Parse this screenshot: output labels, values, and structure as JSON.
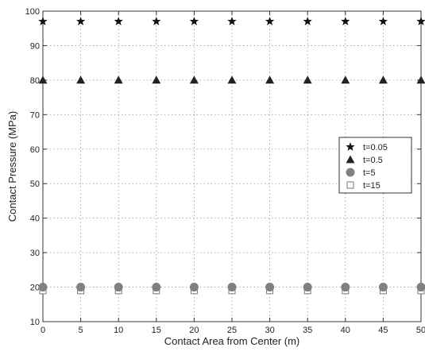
{
  "chart_data": {
    "type": "scatter",
    "title": "",
    "xlabel": "Contact Area from Center (m)",
    "ylabel": "Contact Pressure (MPa)",
    "xlim": [
      0,
      50
    ],
    "ylim": [
      10,
      100
    ],
    "xticks": [
      0,
      5,
      10,
      15,
      20,
      25,
      30,
      35,
      40,
      45,
      50
    ],
    "yticks": [
      10,
      20,
      30,
      40,
      50,
      60,
      70,
      80,
      90,
      100
    ],
    "grid": true,
    "legend_position": "right",
    "x": [
      0,
      5,
      10,
      15,
      20,
      25,
      30,
      35,
      40,
      45,
      50
    ],
    "series": [
      {
        "name": "t=0.05",
        "marker": "star",
        "color": "#111111",
        "values": [
          97,
          97,
          97,
          97,
          97,
          97,
          97,
          97,
          97,
          97,
          97
        ]
      },
      {
        "name": "t=0.5",
        "marker": "triangle",
        "color": "#222222",
        "values": [
          80,
          80,
          80,
          80,
          80,
          80,
          80,
          80,
          80,
          80,
          80
        ]
      },
      {
        "name": "t=5",
        "marker": "circle",
        "color": "#808080",
        "values": [
          20,
          20,
          20,
          20,
          20,
          20,
          20,
          20,
          20,
          20,
          20
        ]
      },
      {
        "name": "t=15",
        "marker": "square",
        "color": "#777777",
        "values": [
          19,
          19,
          19,
          19,
          19,
          19,
          19,
          19,
          19,
          19,
          19
        ]
      }
    ]
  }
}
